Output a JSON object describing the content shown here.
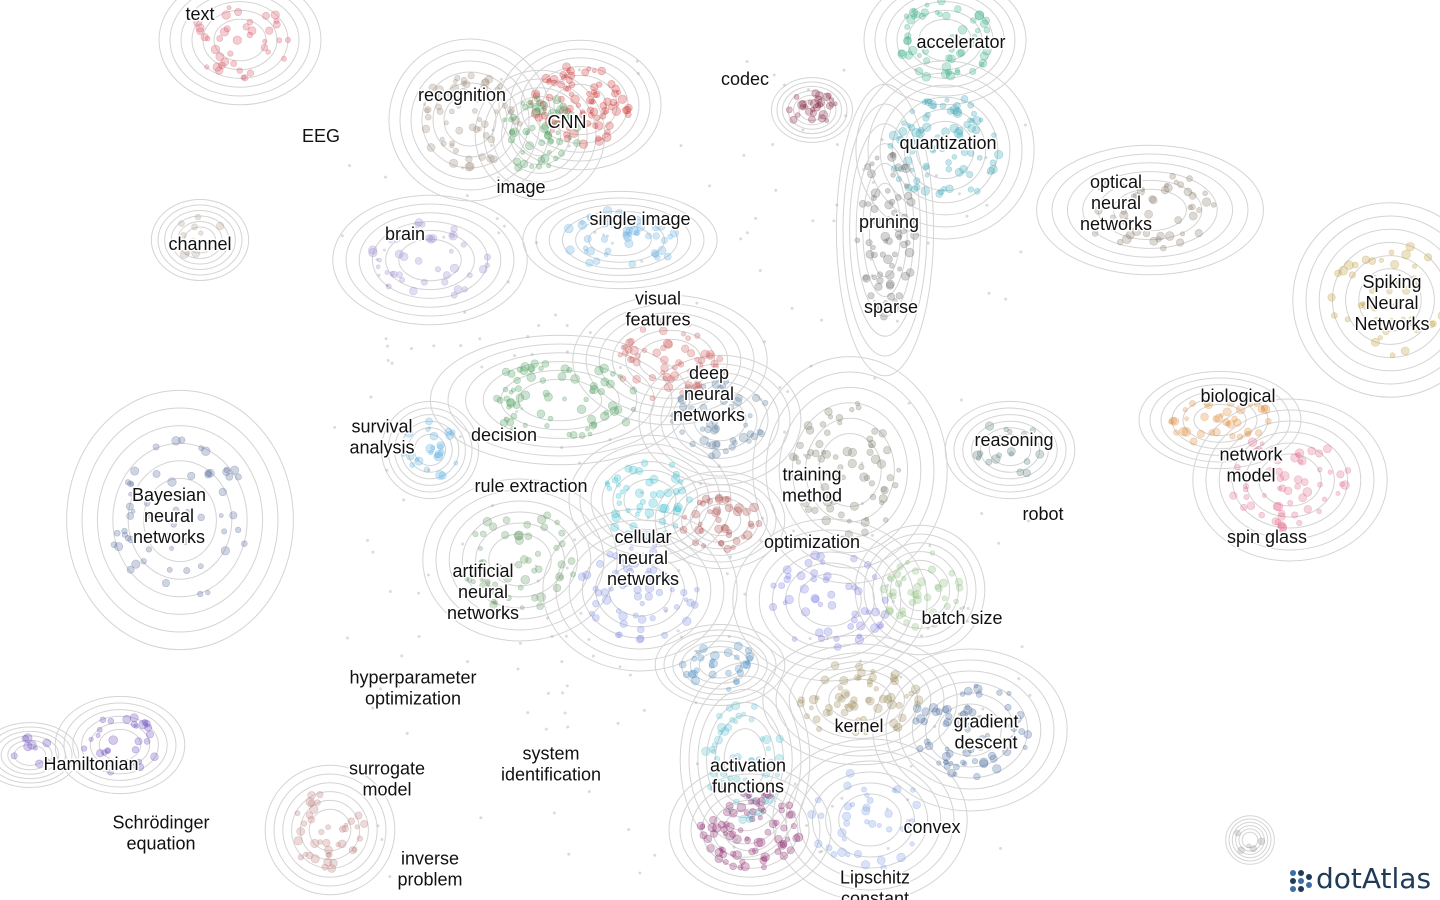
{
  "labels": [
    {
      "lines": [
        "text"
      ]
    },
    {
      "lines": [
        "accelerator"
      ]
    },
    {
      "lines": [
        "codec"
      ]
    },
    {
      "lines": [
        "recognition"
      ]
    },
    {
      "lines": [
        "CNN"
      ]
    },
    {
      "lines": [
        "EEG"
      ]
    },
    {
      "lines": [
        "quantization"
      ]
    },
    {
      "lines": [
        "image"
      ]
    },
    {
      "lines": [
        "optical",
        "neural",
        "networks"
      ]
    },
    {
      "lines": [
        "single image"
      ]
    },
    {
      "lines": [
        "pruning"
      ]
    },
    {
      "lines": [
        "channel"
      ]
    },
    {
      "lines": [
        "brain"
      ]
    },
    {
      "lines": [
        "Spiking",
        "Neural",
        "Networks"
      ]
    },
    {
      "lines": [
        "sparse"
      ]
    },
    {
      "lines": [
        "visual",
        "features"
      ]
    },
    {
      "lines": [
        "deep",
        "neural",
        "networks"
      ]
    },
    {
      "lines": [
        "biological"
      ]
    },
    {
      "lines": [
        "survival",
        "analysis"
      ]
    },
    {
      "lines": [
        "decision"
      ]
    },
    {
      "lines": [
        "reasoning"
      ]
    },
    {
      "lines": [
        "network",
        "model"
      ]
    },
    {
      "lines": [
        "training",
        "method"
      ]
    },
    {
      "lines": [
        "rule extraction"
      ]
    },
    {
      "lines": [
        "Bayesian",
        "neural",
        "networks"
      ]
    },
    {
      "lines": [
        "robot"
      ]
    },
    {
      "lines": [
        "spin glass"
      ]
    },
    {
      "lines": [
        "optimization"
      ]
    },
    {
      "lines": [
        "cellular",
        "neural",
        "networks"
      ]
    },
    {
      "lines": [
        "artificial",
        "neural",
        "networks"
      ]
    },
    {
      "lines": [
        "batch size"
      ]
    },
    {
      "lines": [
        "hyperparameter",
        "optimization"
      ]
    },
    {
      "lines": [
        "kernel"
      ]
    },
    {
      "lines": [
        "gradient",
        "descent"
      ]
    },
    {
      "lines": [
        "Hamiltonian"
      ]
    },
    {
      "lines": [
        "system",
        "identification"
      ]
    },
    {
      "lines": [
        "surrogate",
        "model"
      ]
    },
    {
      "lines": [
        "activation",
        "functions"
      ]
    },
    {
      "lines": [
        "Schrödinger",
        "equation"
      ]
    },
    {
      "lines": [
        "convex"
      ]
    },
    {
      "lines": [
        "inverse",
        "problem"
      ]
    },
    {
      "lines": [
        "Lipschitz",
        "constant"
      ]
    }
  ],
  "logo": "dotAtlas"
}
